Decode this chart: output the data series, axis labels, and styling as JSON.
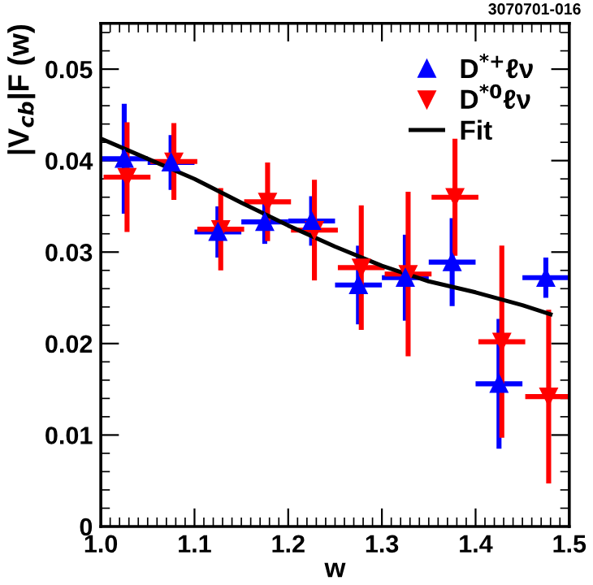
{
  "chart_data": {
    "type": "scatter",
    "xlabel": "w",
    "ylabel": "|V$_{cb}$|F (w)",
    "annotations": [
      "3070701-016"
    ],
    "xlim": [
      1.0,
      1.5
    ],
    "xticks": [
      {
        "value": 1.0,
        "label": "1.0"
      },
      {
        "value": 1.1,
        "label": "1.1"
      },
      {
        "value": 1.2,
        "label": "1.2"
      },
      {
        "value": 1.3,
        "label": "1.3"
      },
      {
        "value": 1.4,
        "label": "1.4"
      },
      {
        "value": 1.5,
        "label": "1.5"
      }
    ],
    "ylim": [
      0,
      0.055
    ],
    "yticks": [
      0,
      0.01,
      0.02,
      0.03,
      0.04,
      0.05
    ],
    "legend": "top right",
    "grid": false,
    "series": [
      {
        "name": "D$^{*+}$ℓν",
        "color": "#0000ff",
        "marker": "triangle",
        "x": [
          1.025,
          1.075,
          1.125,
          1.175,
          1.225,
          1.275,
          1.325,
          1.375,
          1.425,
          1.475
        ],
        "values": [
          0.0402,
          0.0398,
          0.0322,
          0.0333,
          0.0334,
          0.0264,
          0.0272,
          0.0289,
          0.0156,
          0.0272
        ],
        "errors": [
          0.006,
          0.003,
          0.0028,
          0.0024,
          0.0027,
          0.0043,
          0.0047,
          0.0048,
          0.0071,
          0.0022
        ],
        "xerrors": [
          0.025,
          0.025,
          0.025,
          0.025,
          0.025,
          0.025,
          0.025,
          0.025,
          0.025,
          0.025
        ]
      },
      {
        "name": "D$^{*0}$ℓν",
        "color": "#ff0000",
        "marker": "triangle_down",
        "x": [
          1.028,
          1.078,
          1.128,
          1.178,
          1.228,
          1.278,
          1.328,
          1.378,
          1.428,
          1.478
        ],
        "values": [
          0.0382,
          0.0399,
          0.0325,
          0.0355,
          0.0324,
          0.0283,
          0.0276,
          0.036,
          0.0202,
          0.0142
        ],
        "errors": [
          0.006,
          0.0042,
          0.0045,
          0.0043,
          0.0055,
          0.0068,
          0.009,
          0.0064,
          0.0105,
          0.0095
        ],
        "xerrors": [
          0.025,
          0.025,
          0.025,
          0.025,
          0.025,
          0.025,
          0.025,
          0.025,
          0.025,
          0.025
        ]
      },
      {
        "name": "Fit",
        "type": "line",
        "color": "#000000",
        "marker": "none",
        "line_style": "solid",
        "x": [
          1.0,
          1.05,
          1.1,
          1.15,
          1.2,
          1.25,
          1.3,
          1.35,
          1.4,
          1.45,
          1.48
        ],
        "values": [
          0.0424,
          0.0402,
          0.038,
          0.0354,
          0.0329,
          0.0306,
          0.0285,
          0.0268,
          0.0256,
          0.0242,
          0.0232
        ]
      }
    ]
  }
}
